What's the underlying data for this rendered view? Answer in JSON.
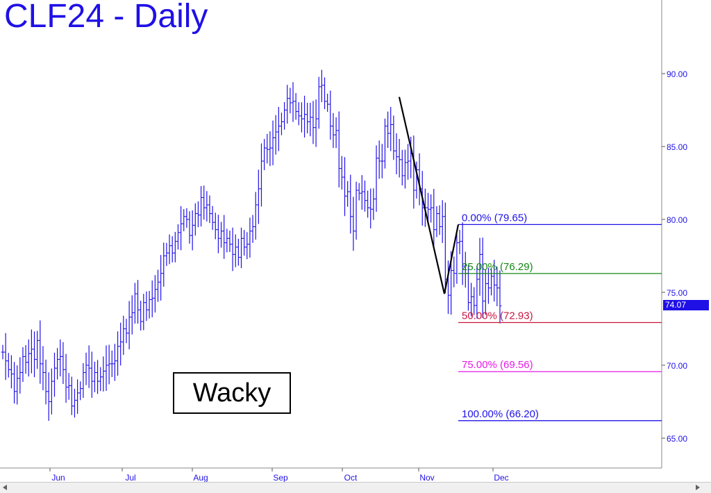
{
  "title": "CLF24 - Daily",
  "annotation": "Wacky",
  "last_price": "74.07",
  "colors": {
    "bars": "#1f10e6",
    "fib_0": "#1f10e6",
    "fib_25": "#118811",
    "fib_50": "#c8143c",
    "fib_75": "#e619e6",
    "fib_100": "#1f10e6",
    "pattern": "#000000"
  },
  "chart_data": {
    "type": "bar",
    "subtype": "ohlc",
    "ylim": [
      62.5,
      94
    ],
    "y_ticks": [
      {
        "value": 90,
        "label": "90.00"
      },
      {
        "value": 85,
        "label": "85.00"
      },
      {
        "value": 80,
        "label": "80.00"
      },
      {
        "value": 75,
        "label": "75.00"
      },
      {
        "value": 70,
        "label": "70.00"
      },
      {
        "value": 65,
        "label": "65.00"
      }
    ],
    "x_ticks": [
      "Jun",
      "Jul",
      "Aug",
      "Sep",
      "Oct",
      "Nov",
      "Dec"
    ],
    "grid": false,
    "fib_levels": [
      {
        "pct": "0.00%",
        "value": 79.65,
        "label": "0.00% (79.65)",
        "color_key": "fib_0"
      },
      {
        "pct": "25.00%",
        "value": 76.29,
        "label": "25.00% (76.29)",
        "color_key": "fib_25"
      },
      {
        "pct": "50.00%",
        "value": 72.93,
        "label": "50.00% (72.93)",
        "color_key": "fib_50"
      },
      {
        "pct": "75.00%",
        "value": 69.56,
        "label": "75.00% (69.56)",
        "color_key": "fib_75"
      },
      {
        "pct": "100.00%",
        "value": 66.2,
        "label": "100.00% (66.20)",
        "color_key": "fib_100"
      }
    ],
    "pattern_points": [
      {
        "date": "Oct 23",
        "value": 88.4
      },
      {
        "date": "Nov 10",
        "value": 74.9
      },
      {
        "date": "Nov 14",
        "value": 79.65
      }
    ],
    "closes": [
      70.9,
      70.3,
      69.7,
      69.4,
      68.2,
      69.1,
      69.5,
      70.6,
      70.2,
      70.8,
      71.1,
      70.4,
      71.7,
      70.1,
      69.5,
      68.2,
      67.5,
      68.9,
      69.8,
      70.4,
      70.6,
      69.7,
      68.5,
      68.6,
      67.2,
      67.6,
      68.1,
      68.4,
      69.5,
      70.0,
      69.8,
      68.9,
      69.5,
      68.9,
      69.2,
      69.6,
      70.0,
      70.1,
      70.1,
      70.3,
      71.3,
      71.6,
      72.5,
      72.2,
      73.3,
      73.6,
      74.9,
      73.8,
      73.0,
      74.3,
      73.8,
      74.5,
      74.6,
      75.2,
      75.7,
      76.3,
      77.5,
      77.7,
      78.2,
      77.7,
      78.5,
      79.1,
      79.7,
      80.2,
      80.0,
      78.9,
      79.6,
      80.4,
      80.3,
      81.5,
      80.8,
      81.0,
      80.4,
      79.8,
      79.3,
      78.7,
      79.2,
      78.4,
      78.7,
      78.3,
      77.6,
      78.1,
      77.4,
      78.7,
      78.1,
      78.3,
      79.2,
      79.5,
      81.0,
      82.1,
      84.0,
      84.9,
      84.8,
      84.9,
      85.6,
      86.0,
      86.4,
      86.7,
      87.5,
      88.3,
      88.0,
      88.1,
      87.4,
      87.1,
      86.9,
      87.2,
      86.7,
      87.0,
      86.3,
      86.9,
      89.1,
      89.2,
      88.1,
      87.9,
      86.4,
      85.8,
      86.1,
      83.5,
      82.9,
      81.6,
      81.9,
      80.2,
      79.2,
      82.0,
      81.8,
      81.9,
      81.3,
      80.8,
      80.7,
      81.4,
      84.2,
      84.0,
      84.0,
      86.4,
      85.9,
      86.5,
      84.7,
      84.3,
      84.1,
      83.0,
      83.9,
      84.0,
      84.5,
      82.0,
      83.4,
      82.1,
      80.8,
      80.8,
      80.7,
      80.8,
      79.3,
      80.4,
      79.5,
      80.2,
      75.9,
      74.8,
      76.5,
      76.3,
      78.4,
      78.5,
      76.8,
      76.3,
      74.3,
      74.7,
      74.1,
      75.9,
      77.6,
      74.4,
      75.6,
      75.3,
      76.1,
      75.5,
      75.3,
      74.07
    ],
    "period": {
      "first": "May 23",
      "last": "Nov 30"
    }
  }
}
